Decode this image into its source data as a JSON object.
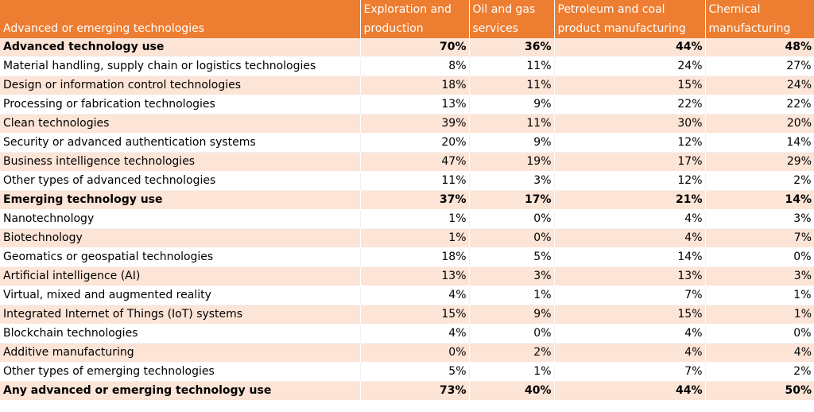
{
  "chart_data": {
    "type": "table",
    "columns": [
      "Advanced or emerging technologies",
      "Exploration and production",
      "Oil and gas services",
      "Petroleum and coal product manufacturing",
      "Chemical manufacturing"
    ],
    "rows": [
      {
        "label": "Advanced technology use",
        "values": [
          "70%",
          "36%",
          "44%",
          "48%"
        ],
        "bold": true
      },
      {
        "label": "Material handling, supply chain or logistics technologies",
        "values": [
          "8%",
          "11%",
          "24%",
          "27%"
        ],
        "bold": false
      },
      {
        "label": "Design or information control technologies",
        "values": [
          "18%",
          "11%",
          "15%",
          "24%"
        ],
        "bold": false
      },
      {
        "label": "Processing or fabrication technologies",
        "values": [
          "13%",
          "9%",
          "22%",
          "22%"
        ],
        "bold": false
      },
      {
        "label": "Clean technologies",
        "values": [
          "39%",
          "11%",
          "30%",
          "20%"
        ],
        "bold": false
      },
      {
        "label": "Security or advanced authentication systems",
        "values": [
          "20%",
          "9%",
          "12%",
          "14%"
        ],
        "bold": false
      },
      {
        "label": "Business intelligence technologies",
        "values": [
          "47%",
          "19%",
          "17%",
          "29%"
        ],
        "bold": false
      },
      {
        "label": "Other types of advanced technologies",
        "values": [
          "11%",
          "3%",
          "12%",
          "2%"
        ],
        "bold": false
      },
      {
        "label": "Emerging technology use",
        "values": [
          "37%",
          "17%",
          "21%",
          "14%"
        ],
        "bold": true
      },
      {
        "label": "Nanotechnology",
        "values": [
          "1%",
          "0%",
          "4%",
          "3%"
        ],
        "bold": false
      },
      {
        "label": "Biotechnology",
        "values": [
          "1%",
          "0%",
          "4%",
          "7%"
        ],
        "bold": false
      },
      {
        "label": "Geomatics or geospatial technologies",
        "values": [
          "18%",
          "5%",
          "14%",
          "0%"
        ],
        "bold": false
      },
      {
        "label": "Artificial intelligence (AI)",
        "values": [
          "13%",
          "3%",
          "13%",
          "3%"
        ],
        "bold": false
      },
      {
        "label": "Virtual, mixed and augmented reality",
        "values": [
          "4%",
          "1%",
          "7%",
          "1%"
        ],
        "bold": false
      },
      {
        "label": "Integrated Internet of Things (IoT) systems",
        "values": [
          "15%",
          "9%",
          "15%",
          "1%"
        ],
        "bold": false
      },
      {
        "label": "Blockchain technologies",
        "values": [
          "4%",
          "0%",
          "4%",
          "0%"
        ],
        "bold": false
      },
      {
        "label": "Additive manufacturing",
        "values": [
          "0%",
          "2%",
          "4%",
          "4%"
        ],
        "bold": false
      },
      {
        "label": "Other types of emerging technologies",
        "values": [
          "5%",
          "1%",
          "7%",
          "2%"
        ],
        "bold": false
      },
      {
        "label": "Any advanced or emerging technology use",
        "values": [
          "73%",
          "40%",
          "44%",
          "50%"
        ],
        "bold": true
      }
    ]
  },
  "colors": {
    "header_background": "#ed7d31",
    "header_text": "#ffffff",
    "shaded_row": "#fce4d6",
    "plain_row": "#ffffff"
  }
}
